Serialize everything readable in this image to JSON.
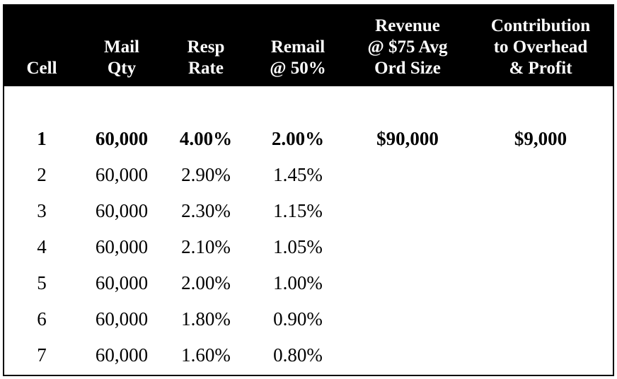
{
  "table": {
    "headers": {
      "cell": "Cell",
      "mail_qty": "Mail\nQty",
      "resp_rate": "Resp\nRate",
      "remail": "Remail\n@ 50%",
      "revenue": "Revenue\n@ $75 Avg\nOrd Size",
      "contribution": "Contribution\nto Overhead\n& Profit"
    },
    "rows": [
      {
        "cell": "1",
        "mail_qty": "60,000",
        "resp_rate": "4.00%",
        "remail": "2.00%",
        "revenue": "$90,000",
        "contribution": "$9,000",
        "bold": true
      },
      {
        "cell": "2",
        "mail_qty": "60,000",
        "resp_rate": "2.90%",
        "remail": "1.45%",
        "revenue": "",
        "contribution": ""
      },
      {
        "cell": "3",
        "mail_qty": "60,000",
        "resp_rate": "2.30%",
        "remail": "1.15%",
        "revenue": "",
        "contribution": ""
      },
      {
        "cell": "4",
        "mail_qty": "60,000",
        "resp_rate": "2.10%",
        "remail": "1.05%",
        "revenue": "",
        "contribution": ""
      },
      {
        "cell": "5",
        "mail_qty": "60,000",
        "resp_rate": "2.00%",
        "remail": "1.00%",
        "revenue": "",
        "contribution": ""
      },
      {
        "cell": "6",
        "mail_qty": "60,000",
        "resp_rate": "1.80%",
        "remail": "0.90%",
        "revenue": "",
        "contribution": ""
      },
      {
        "cell": "7",
        "mail_qty": "60,000",
        "resp_rate": "1.60%",
        "remail": "0.80%",
        "revenue": "",
        "contribution": ""
      }
    ]
  },
  "colors": {
    "header_bg": "#000000",
    "header_text": "#ffffff",
    "body_text": "#000000"
  }
}
